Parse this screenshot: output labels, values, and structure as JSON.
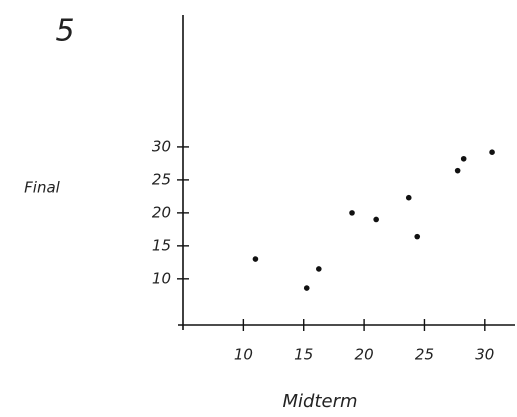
{
  "chart_data": {
    "type": "scatter",
    "annotation": "5",
    "xlabel": "Midterm",
    "ylabel": "Final",
    "x": [
      11,
      15.25,
      16.25,
      19,
      21,
      23.7,
      24.4,
      27.75,
      28.25,
      30.6
    ],
    "values": [
      13,
      8.6,
      11.5,
      20,
      19,
      22.3,
      16.4,
      26.4,
      28.2,
      29.2
    ],
    "color": "#111",
    "xlim": [
      5,
      32.5
    ],
    "ylim": [
      3,
      50
    ],
    "xticks": [
      10,
      15,
      20,
      25,
      30
    ],
    "yticks": [
      10,
      15,
      20,
      25,
      30
    ],
    "grid": false
  }
}
